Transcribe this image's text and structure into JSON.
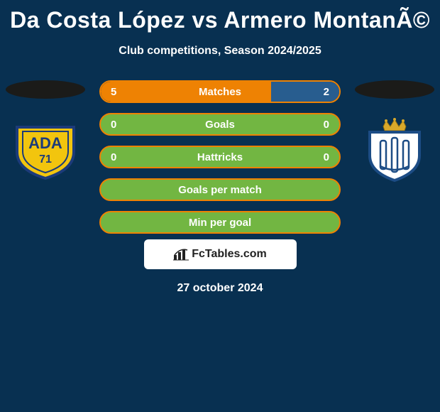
{
  "title": "Da Costa López vs Armero MontanÃ©",
  "subtitle": "Club competitions, Season 2024/2025",
  "colors": {
    "background": "#083051",
    "left_accent": "#ee8203",
    "right_accent": "#285d8f",
    "empty_green": "#72b642",
    "ellipse": "#1b1b19",
    "text": "#ffffff",
    "brand_bg": "#ffffff",
    "brand_text": "#222222"
  },
  "stats": [
    {
      "label": "Matches",
      "left_val": "5",
      "right_val": "2",
      "left_pct": 71.4,
      "right_pct": 28.6,
      "mode": "split"
    },
    {
      "label": "Goals",
      "left_val": "0",
      "right_val": "0",
      "mode": "empty"
    },
    {
      "label": "Hattricks",
      "left_val": "0",
      "right_val": "0",
      "mode": "empty"
    },
    {
      "label": "Goals per match",
      "mode": "empty_nolabels"
    },
    {
      "label": "Min per goal",
      "mode": "empty_nolabels"
    }
  ],
  "brand": "FcTables.com",
  "date": "27 october 2024",
  "logo_left": {
    "primary": "#f2c50e",
    "secondary": "#1c3b7a",
    "text": "ADA",
    "sub": "71"
  },
  "logo_right": {
    "primary": "#ffffff",
    "secondary": "#1c4c85",
    "crown": "#d9a82a"
  }
}
